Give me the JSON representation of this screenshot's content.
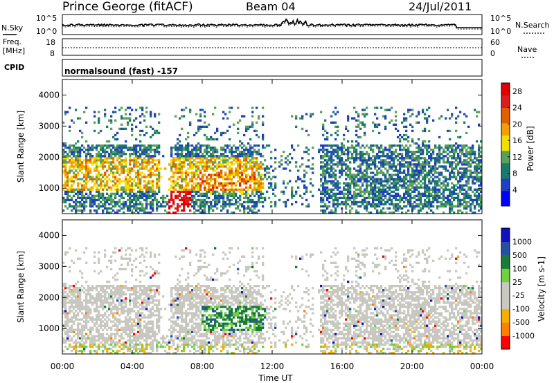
{
  "header": {
    "station": "Prince George (fitACF)",
    "beam": "Beam 04",
    "date": "24/Jul/2011"
  },
  "summary_panels": {
    "nsky_label": "N.Sky",
    "nsearch_label": "N.Search",
    "noise_ticks": [
      "10^5",
      "10^0"
    ],
    "freq_label_1": "Freq.",
    "freq_label_2": "[MHz]",
    "freq_ticks": [
      "18",
      "8"
    ],
    "nave_label": "Nave",
    "nave_ticks": [
      "60",
      "0"
    ],
    "cpid_label": "CPID",
    "cpid_text": "normalsound (fast) -157"
  },
  "colors": {
    "power_scale": [
      "#0000ff",
      "#2040c0",
      "#1a7a6a",
      "#5aa05a",
      "#f0e000",
      "#f0a000",
      "#e06000",
      "#d81e1e",
      "#e00000"
    ],
    "velocity_scale": [
      "#ff0000",
      "#ff7f00",
      "#f4b000",
      "#c8c8c0",
      "#c8c8c0",
      "#70d040",
      "#1a7a3a",
      "#2850a0",
      "#1010c0"
    ],
    "velocity_ground": "#c8c8c0"
  },
  "chart_data": [
    {
      "type": "heatmap",
      "title": "Power",
      "ylabel": "Slant Range [km]",
      "ylim": [
        180,
        4500
      ],
      "yticks": [
        1000,
        2000,
        3000,
        4000
      ],
      "colorbar_label": "Power [dB]",
      "colorbar_ticks": [
        4,
        8,
        12,
        16,
        20,
        24,
        28
      ],
      "colorbar_range": [
        0,
        30
      ]
    },
    {
      "type": "heatmap",
      "title": "Velocity",
      "ylabel": "Slant Range [km]",
      "ylim": [
        180,
        4500
      ],
      "yticks": [
        1000,
        2000,
        3000,
        4000
      ],
      "colorbar_label": "Velocity [m s-1]",
      "colorbar_ticks": [
        "1000",
        "500",
        "100",
        "25",
        "-25",
        "-100",
        "-500",
        "-1000"
      ]
    }
  ],
  "xaxis": {
    "label": "Time UT",
    "ticks": [
      "00:00",
      "04:00",
      "08:00",
      "12:00",
      "16:00",
      "20:00",
      "00:00"
    ]
  }
}
